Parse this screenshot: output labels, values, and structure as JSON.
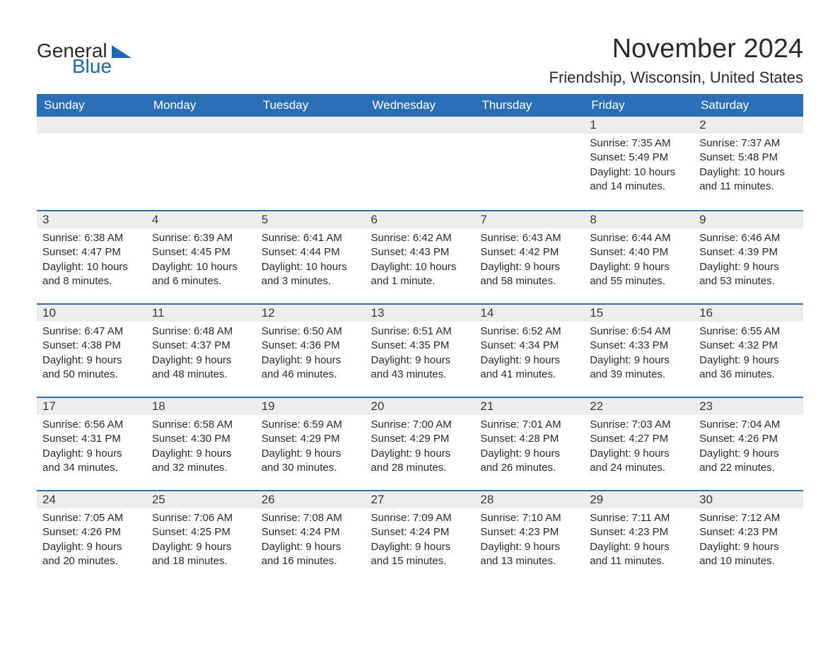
{
  "colors": {
    "header_bg": "#2a6fb5",
    "header_text": "#ffffff",
    "daynum_bg": "#ededed",
    "daynum_border": "#2a6fb5",
    "body_text": "#2a2a2a",
    "logo_blue": "#2067b0",
    "page_bg": "#ffffff"
  },
  "logo": {
    "part1": "General",
    "part2": "Blue"
  },
  "title": "November 2024",
  "location": "Friendship, Wisconsin, United States",
  "weekdays": [
    "Sunday",
    "Monday",
    "Tuesday",
    "Wednesday",
    "Thursday",
    "Friday",
    "Saturday"
  ],
  "weeks": [
    [
      null,
      null,
      null,
      null,
      null,
      {
        "d": "1",
        "sunrise": "Sunrise: 7:35 AM",
        "sunset": "Sunset: 5:49 PM",
        "daylight": "Daylight: 10 hours and 14 minutes."
      },
      {
        "d": "2",
        "sunrise": "Sunrise: 7:37 AM",
        "sunset": "Sunset: 5:48 PM",
        "daylight": "Daylight: 10 hours and 11 minutes."
      }
    ],
    [
      {
        "d": "3",
        "sunrise": "Sunrise: 6:38 AM",
        "sunset": "Sunset: 4:47 PM",
        "daylight": "Daylight: 10 hours and 8 minutes."
      },
      {
        "d": "4",
        "sunrise": "Sunrise: 6:39 AM",
        "sunset": "Sunset: 4:45 PM",
        "daylight": "Daylight: 10 hours and 6 minutes."
      },
      {
        "d": "5",
        "sunrise": "Sunrise: 6:41 AM",
        "sunset": "Sunset: 4:44 PM",
        "daylight": "Daylight: 10 hours and 3 minutes."
      },
      {
        "d": "6",
        "sunrise": "Sunrise: 6:42 AM",
        "sunset": "Sunset: 4:43 PM",
        "daylight": "Daylight: 10 hours and 1 minute."
      },
      {
        "d": "7",
        "sunrise": "Sunrise: 6:43 AM",
        "sunset": "Sunset: 4:42 PM",
        "daylight": "Daylight: 9 hours and 58 minutes."
      },
      {
        "d": "8",
        "sunrise": "Sunrise: 6:44 AM",
        "sunset": "Sunset: 4:40 PM",
        "daylight": "Daylight: 9 hours and 55 minutes."
      },
      {
        "d": "9",
        "sunrise": "Sunrise: 6:46 AM",
        "sunset": "Sunset: 4:39 PM",
        "daylight": "Daylight: 9 hours and 53 minutes."
      }
    ],
    [
      {
        "d": "10",
        "sunrise": "Sunrise: 6:47 AM",
        "sunset": "Sunset: 4:38 PM",
        "daylight": "Daylight: 9 hours and 50 minutes."
      },
      {
        "d": "11",
        "sunrise": "Sunrise: 6:48 AM",
        "sunset": "Sunset: 4:37 PM",
        "daylight": "Daylight: 9 hours and 48 minutes."
      },
      {
        "d": "12",
        "sunrise": "Sunrise: 6:50 AM",
        "sunset": "Sunset: 4:36 PM",
        "daylight": "Daylight: 9 hours and 46 minutes."
      },
      {
        "d": "13",
        "sunrise": "Sunrise: 6:51 AM",
        "sunset": "Sunset: 4:35 PM",
        "daylight": "Daylight: 9 hours and 43 minutes."
      },
      {
        "d": "14",
        "sunrise": "Sunrise: 6:52 AM",
        "sunset": "Sunset: 4:34 PM",
        "daylight": "Daylight: 9 hours and 41 minutes."
      },
      {
        "d": "15",
        "sunrise": "Sunrise: 6:54 AM",
        "sunset": "Sunset: 4:33 PM",
        "daylight": "Daylight: 9 hours and 39 minutes."
      },
      {
        "d": "16",
        "sunrise": "Sunrise: 6:55 AM",
        "sunset": "Sunset: 4:32 PM",
        "daylight": "Daylight: 9 hours and 36 minutes."
      }
    ],
    [
      {
        "d": "17",
        "sunrise": "Sunrise: 6:56 AM",
        "sunset": "Sunset: 4:31 PM",
        "daylight": "Daylight: 9 hours and 34 minutes."
      },
      {
        "d": "18",
        "sunrise": "Sunrise: 6:58 AM",
        "sunset": "Sunset: 4:30 PM",
        "daylight": "Daylight: 9 hours and 32 minutes."
      },
      {
        "d": "19",
        "sunrise": "Sunrise: 6:59 AM",
        "sunset": "Sunset: 4:29 PM",
        "daylight": "Daylight: 9 hours and 30 minutes."
      },
      {
        "d": "20",
        "sunrise": "Sunrise: 7:00 AM",
        "sunset": "Sunset: 4:29 PM",
        "daylight": "Daylight: 9 hours and 28 minutes."
      },
      {
        "d": "21",
        "sunrise": "Sunrise: 7:01 AM",
        "sunset": "Sunset: 4:28 PM",
        "daylight": "Daylight: 9 hours and 26 minutes."
      },
      {
        "d": "22",
        "sunrise": "Sunrise: 7:03 AM",
        "sunset": "Sunset: 4:27 PM",
        "daylight": "Daylight: 9 hours and 24 minutes."
      },
      {
        "d": "23",
        "sunrise": "Sunrise: 7:04 AM",
        "sunset": "Sunset: 4:26 PM",
        "daylight": "Daylight: 9 hours and 22 minutes."
      }
    ],
    [
      {
        "d": "24",
        "sunrise": "Sunrise: 7:05 AM",
        "sunset": "Sunset: 4:26 PM",
        "daylight": "Daylight: 9 hours and 20 minutes."
      },
      {
        "d": "25",
        "sunrise": "Sunrise: 7:06 AM",
        "sunset": "Sunset: 4:25 PM",
        "daylight": "Daylight: 9 hours and 18 minutes."
      },
      {
        "d": "26",
        "sunrise": "Sunrise: 7:08 AM",
        "sunset": "Sunset: 4:24 PM",
        "daylight": "Daylight: 9 hours and 16 minutes."
      },
      {
        "d": "27",
        "sunrise": "Sunrise: 7:09 AM",
        "sunset": "Sunset: 4:24 PM",
        "daylight": "Daylight: 9 hours and 15 minutes."
      },
      {
        "d": "28",
        "sunrise": "Sunrise: 7:10 AM",
        "sunset": "Sunset: 4:23 PM",
        "daylight": "Daylight: 9 hours and 13 minutes."
      },
      {
        "d": "29",
        "sunrise": "Sunrise: 7:11 AM",
        "sunset": "Sunset: 4:23 PM",
        "daylight": "Daylight: 9 hours and 11 minutes."
      },
      {
        "d": "30",
        "sunrise": "Sunrise: 7:12 AM",
        "sunset": "Sunset: 4:23 PM",
        "daylight": "Daylight: 9 hours and 10 minutes."
      }
    ]
  ]
}
